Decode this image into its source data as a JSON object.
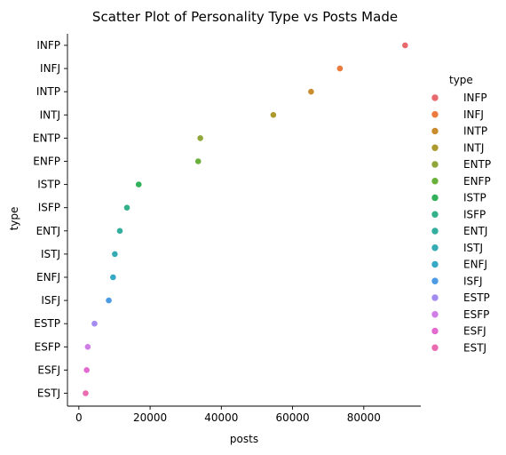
{
  "chart_data": {
    "type": "scatter",
    "title": "Scatter Plot of Personality Type vs Posts Made",
    "xlabel": "posts",
    "ylabel": "type",
    "xlim": [
      -3200,
      96000
    ],
    "x_ticks": [
      0,
      20000,
      40000,
      60000,
      80000
    ],
    "x_tick_labels": [
      "0",
      "20000",
      "40000",
      "60000",
      "80000"
    ],
    "grid": false,
    "legend_title": "type",
    "legend_position": "right",
    "categories": [
      "INFP",
      "INFJ",
      "INTP",
      "INTJ",
      "ENTP",
      "ENFP",
      "ISTP",
      "ISFP",
      "ENTJ",
      "ISTJ",
      "ENFJ",
      "ISFJ",
      "ESTP",
      "ESFP",
      "ESFJ",
      "ESTJ"
    ],
    "points": [
      {
        "type": "INFP",
        "posts": 91600,
        "color": "#e8686e"
      },
      {
        "type": "INFJ",
        "posts": 73300,
        "color": "#ec7a3c"
      },
      {
        "type": "INTP",
        "posts": 65200,
        "color": "#c98d2e"
      },
      {
        "type": "INTJ",
        "posts": 54600,
        "color": "#ad9a2d"
      },
      {
        "type": "ENTP",
        "posts": 34100,
        "color": "#8fa63b"
      },
      {
        "type": "ENFP",
        "posts": 33500,
        "color": "#6ab03d"
      },
      {
        "type": "ISTP",
        "posts": 16800,
        "color": "#33b05a"
      },
      {
        "type": "ISFP",
        "posts": 13500,
        "color": "#34b08a"
      },
      {
        "type": "ENTJ",
        "posts": 11500,
        "color": "#33ae9f"
      },
      {
        "type": "ISTJ",
        "posts": 10100,
        "color": "#35acb3"
      },
      {
        "type": "ENFJ",
        "posts": 9600,
        "color": "#36a9c7"
      },
      {
        "type": "ISFJ",
        "posts": 8400,
        "color": "#4d9be4"
      },
      {
        "type": "ESTP",
        "posts": 4400,
        "color": "#a48bf0"
      },
      {
        "type": "ESFP",
        "posts": 2500,
        "color": "#d17de7"
      },
      {
        "type": "ESFJ",
        "posts": 2200,
        "color": "#e36bd0"
      },
      {
        "type": "ESTJ",
        "posts": 1900,
        "color": "#ea6bb0"
      }
    ]
  }
}
